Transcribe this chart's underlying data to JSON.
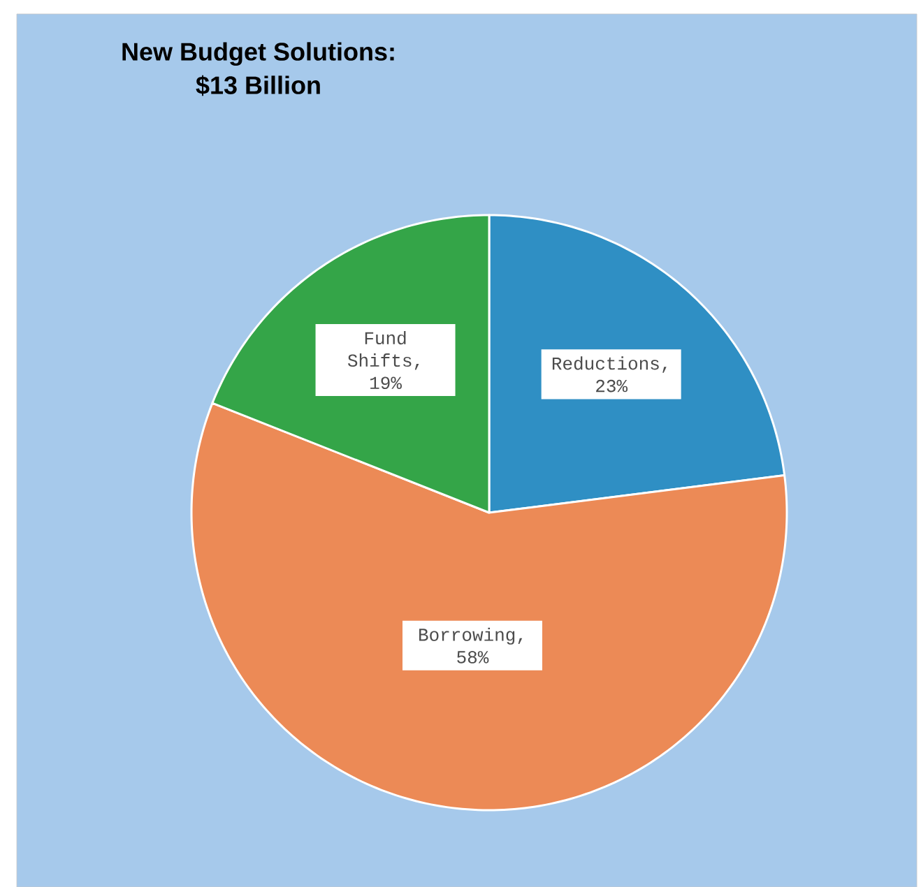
{
  "chart_data": {
    "type": "pie",
    "title": "New Budget Solutions:\n$13 Billion",
    "categories": [
      "Reductions",
      "Borrowing",
      "Fund Shifts"
    ],
    "values": [
      23,
      58,
      19
    ],
    "value_labels": [
      ",\n23%",
      ",\n58%",
      ",\n19%"
    ],
    "colors": [
      "#2f8fc4",
      "#ec8a56",
      "#34a548"
    ]
  }
}
